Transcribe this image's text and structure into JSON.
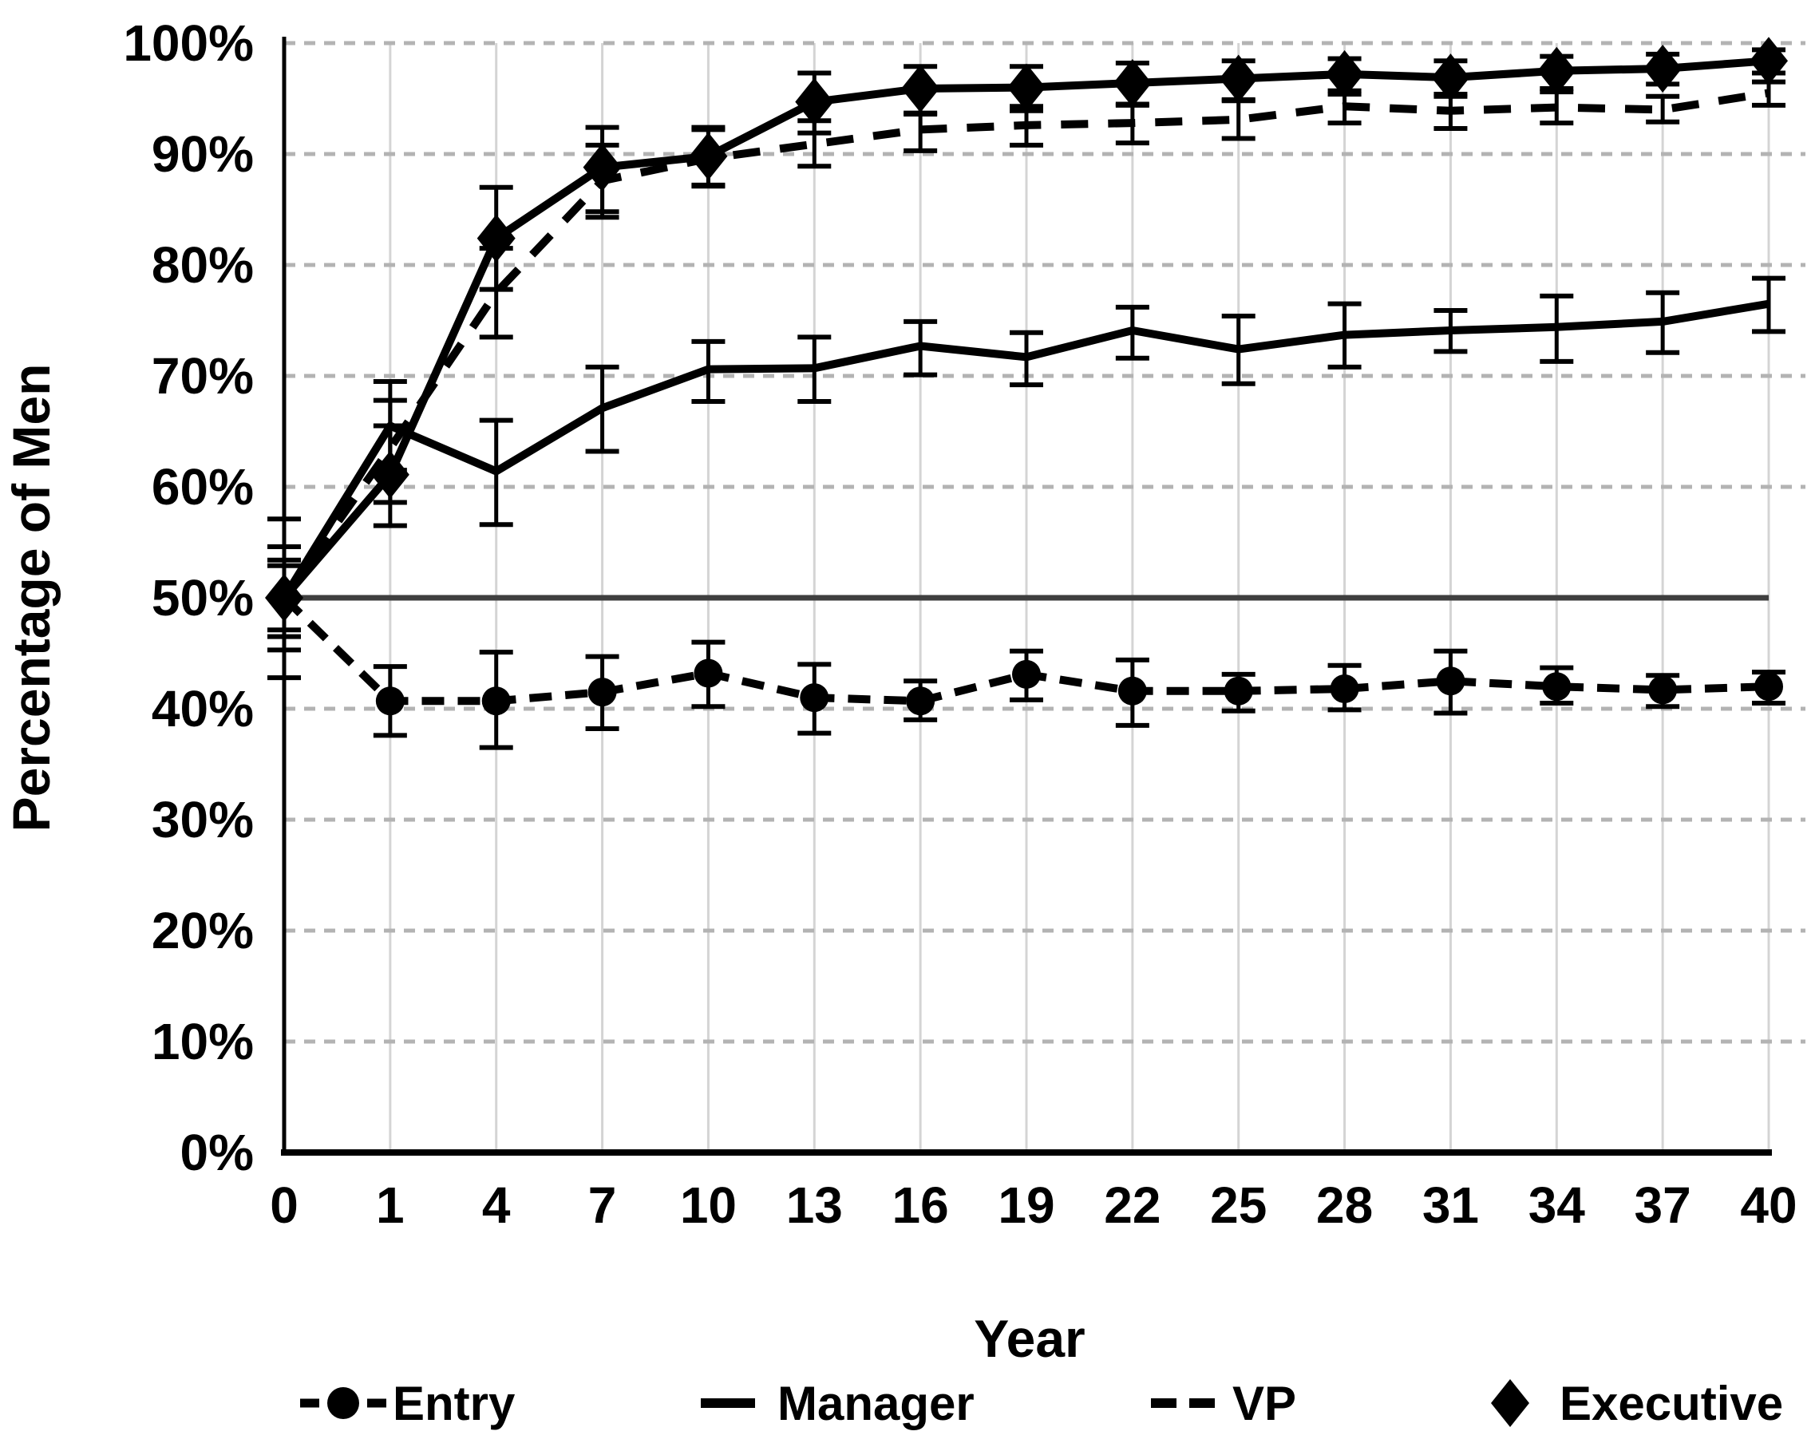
{
  "chart_data": {
    "type": "line",
    "title": "",
    "xlabel": "Year",
    "ylabel": "Percentage of Men",
    "x_categories": [
      "0",
      "1",
      "4",
      "7",
      "10",
      "13",
      "16",
      "19",
      "22",
      "25",
      "28",
      "31",
      "34",
      "37",
      "40"
    ],
    "ylim": [
      0,
      100
    ],
    "ytick_step": 10,
    "ytick_labels": [
      "0%",
      "10%",
      "20%",
      "30%",
      "40%",
      "50%",
      "60%",
      "70%",
      "80%",
      "90%",
      "100%"
    ],
    "reference_line_y": 50,
    "grid": true,
    "error_bars": true,
    "legend_position": "bottom",
    "colors": {
      "series": "#000000",
      "grid_dashed": "#b3b3b3",
      "grid_vertical": "#d4d4d4",
      "reference_line": "#3f3f3f",
      "background": "#ffffff"
    },
    "series": [
      {
        "name": "Entry",
        "line_style": "dashed",
        "marker": "circle",
        "values": [
          50,
          40.7,
          40.7,
          41.5,
          43.2,
          41.0,
          40.7,
          43.1,
          41.6,
          41.6,
          41.8,
          42.5,
          42.0,
          41.7,
          42.0
        ],
        "err_lo": [
          47.1,
          37.6,
          36.5,
          38.2,
          40.2,
          37.8,
          39.0,
          40.8,
          38.5,
          39.8,
          39.9,
          39.6,
          40.5,
          40.2,
          40.5
        ],
        "err_hi": [
          52.9,
          43.8,
          45.1,
          44.7,
          46.0,
          44.0,
          42.5,
          45.2,
          44.4,
          43.1,
          43.9,
          45.2,
          43.7,
          43.0,
          43.3
        ]
      },
      {
        "name": "Manager",
        "line_style": "solid",
        "marker": "none",
        "values": [
          50,
          65.5,
          61.4,
          67.1,
          70.6,
          70.7,
          72.7,
          71.7,
          74.1,
          72.4,
          73.7,
          74.1,
          74.4,
          74.9,
          76.5
        ],
        "err_lo": [
          46.5,
          61.5,
          56.6,
          63.2,
          67.7,
          67.7,
          70.1,
          69.2,
          71.6,
          69.3,
          70.8,
          72.2,
          71.3,
          72.1,
          74.0
        ],
        "err_hi": [
          53.4,
          69.5,
          66.0,
          70.8,
          73.1,
          73.5,
          74.9,
          73.9,
          76.2,
          75.4,
          76.5,
          75.9,
          77.2,
          77.5,
          78.8
        ]
      },
      {
        "name": "VP",
        "line_style": "dashed",
        "marker": "none",
        "values": [
          50,
          63.5,
          77.5,
          87.6,
          89.6,
          90.9,
          92.2,
          92.6,
          92.8,
          93.1,
          94.3,
          93.9,
          94.2,
          94.0,
          95.5
        ],
        "err_lo": [
          45.3,
          58.6,
          73.5,
          84.3,
          87.1,
          88.9,
          90.3,
          90.8,
          91.0,
          91.4,
          92.8,
          92.3,
          92.8,
          92.9,
          94.4
        ],
        "err_hi": [
          54.6,
          67.8,
          81.5,
          90.8,
          92.2,
          93.0,
          93.7,
          94.3,
          94.5,
          94.8,
          95.7,
          95.4,
          95.6,
          95.2,
          96.5
        ]
      },
      {
        "name": "Executive",
        "line_style": "solid",
        "marker": "diamond",
        "values": [
          50,
          61.1,
          82.4,
          88.8,
          89.8,
          94.7,
          95.9,
          96.0,
          96.4,
          96.8,
          97.2,
          96.9,
          97.5,
          97.7,
          98.4
        ],
        "err_lo": [
          42.8,
          56.5,
          77.8,
          84.8,
          87.2,
          91.9,
          93.6,
          93.9,
          94.4,
          94.9,
          95.4,
          95.2,
          95.9,
          96.3,
          97.3
        ],
        "err_hi": [
          57.1,
          65.5,
          87.0,
          92.4,
          92.4,
          97.3,
          97.9,
          97.9,
          98.2,
          98.4,
          98.6,
          98.4,
          98.8,
          99.0,
          99.4
        ]
      }
    ]
  }
}
